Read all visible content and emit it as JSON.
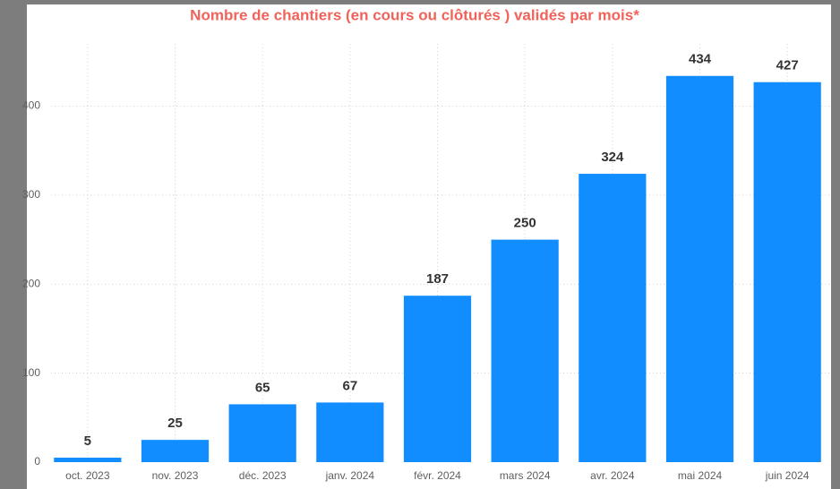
{
  "chart_data": {
    "type": "bar",
    "title": "Nombre de chantiers (en cours ou clôturés ) validés par mois*",
    "categories": [
      "oct. 2023",
      "nov. 2023",
      "déc. 2023",
      "janv. 2024",
      "févr. 2024",
      "mars 2024",
      "avr. 2024",
      "mai 2024",
      "juin 2024"
    ],
    "values": [
      5,
      25,
      65,
      67,
      187,
      250,
      324,
      434,
      427
    ],
    "color": "#118dff",
    "ylim": [
      0,
      470
    ],
    "yticks": [
      0,
      100,
      200,
      300,
      400
    ],
    "grid": true
  }
}
